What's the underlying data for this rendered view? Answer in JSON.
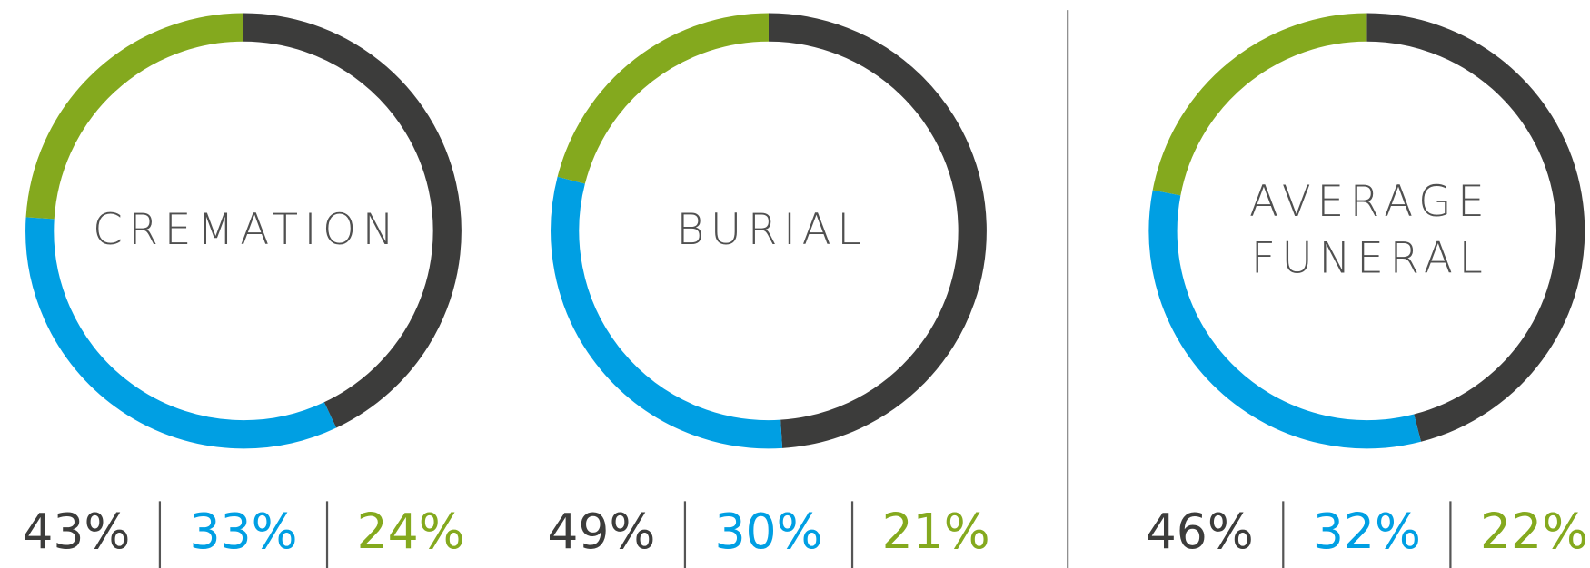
{
  "chart_data": [
    {
      "type": "pie",
      "title": [
        "CREMATION"
      ],
      "values": [
        43,
        33,
        24
      ],
      "value_labels": [
        "43%",
        "33%",
        "24%"
      ],
      "colors": [
        "#3c3c3b",
        "#009fe3",
        "#84a91e"
      ]
    },
    {
      "type": "pie",
      "title": [
        "BURIAL"
      ],
      "values": [
        49,
        30,
        21
      ],
      "value_labels": [
        "49%",
        "30%",
        "21%"
      ],
      "colors": [
        "#3c3c3b",
        "#009fe3",
        "#84a91e"
      ]
    },
    {
      "type": "pie",
      "title": [
        "AVERAGE",
        "FUNERAL"
      ],
      "values": [
        46,
        32,
        22
      ],
      "value_labels": [
        "46%",
        "32%",
        "22%"
      ],
      "colors": [
        "#3c3c3b",
        "#009fe3",
        "#84a91e"
      ]
    }
  ]
}
